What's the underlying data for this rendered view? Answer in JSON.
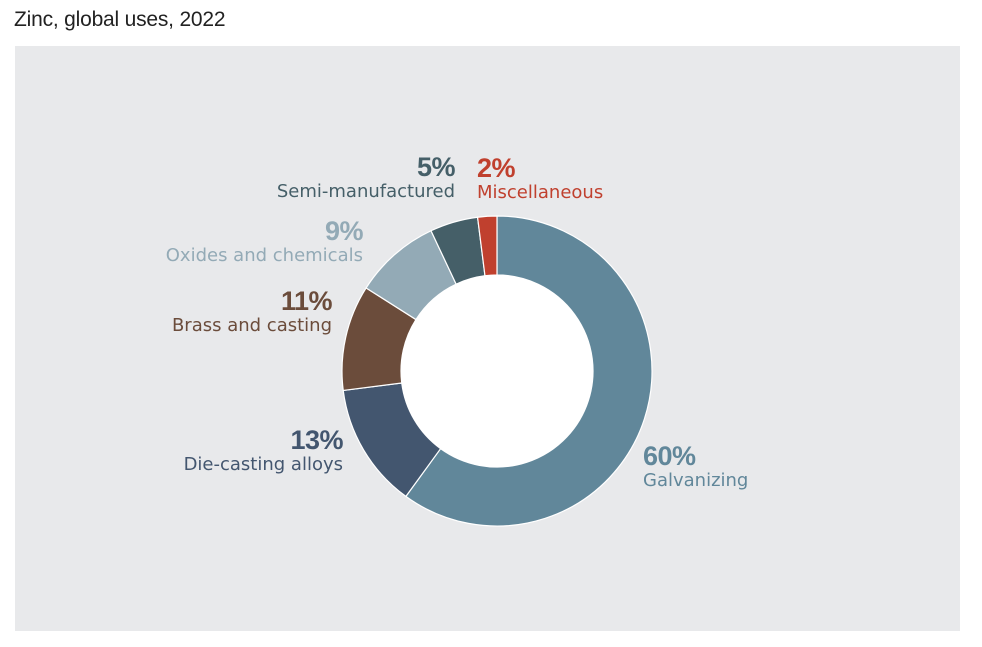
{
  "title": "Zinc, global uses, 2022",
  "chart_data": {
    "type": "pie",
    "donut": true,
    "title": "Zinc, global uses, 2022",
    "slices": [
      {
        "label": "Galvanizing",
        "value": 60,
        "pct_label": "60%",
        "color": "#61879a"
      },
      {
        "label": "Die-casting alloys",
        "value": 13,
        "pct_label": "13%",
        "color": "#43566f"
      },
      {
        "label": "Brass and casting",
        "value": 11,
        "pct_label": "11%",
        "color": "#6b4c3b"
      },
      {
        "label": "Oxides and chemicals",
        "value": 9,
        "pct_label": "9%",
        "color": "#93aab6"
      },
      {
        "label": "Semi-manufactured",
        "value": 5,
        "pct_label": "5%",
        "color": "#455f68"
      },
      {
        "label": "Miscellaneous",
        "value": 2,
        "pct_label": "2%",
        "color": "#c0402e"
      }
    ]
  }
}
